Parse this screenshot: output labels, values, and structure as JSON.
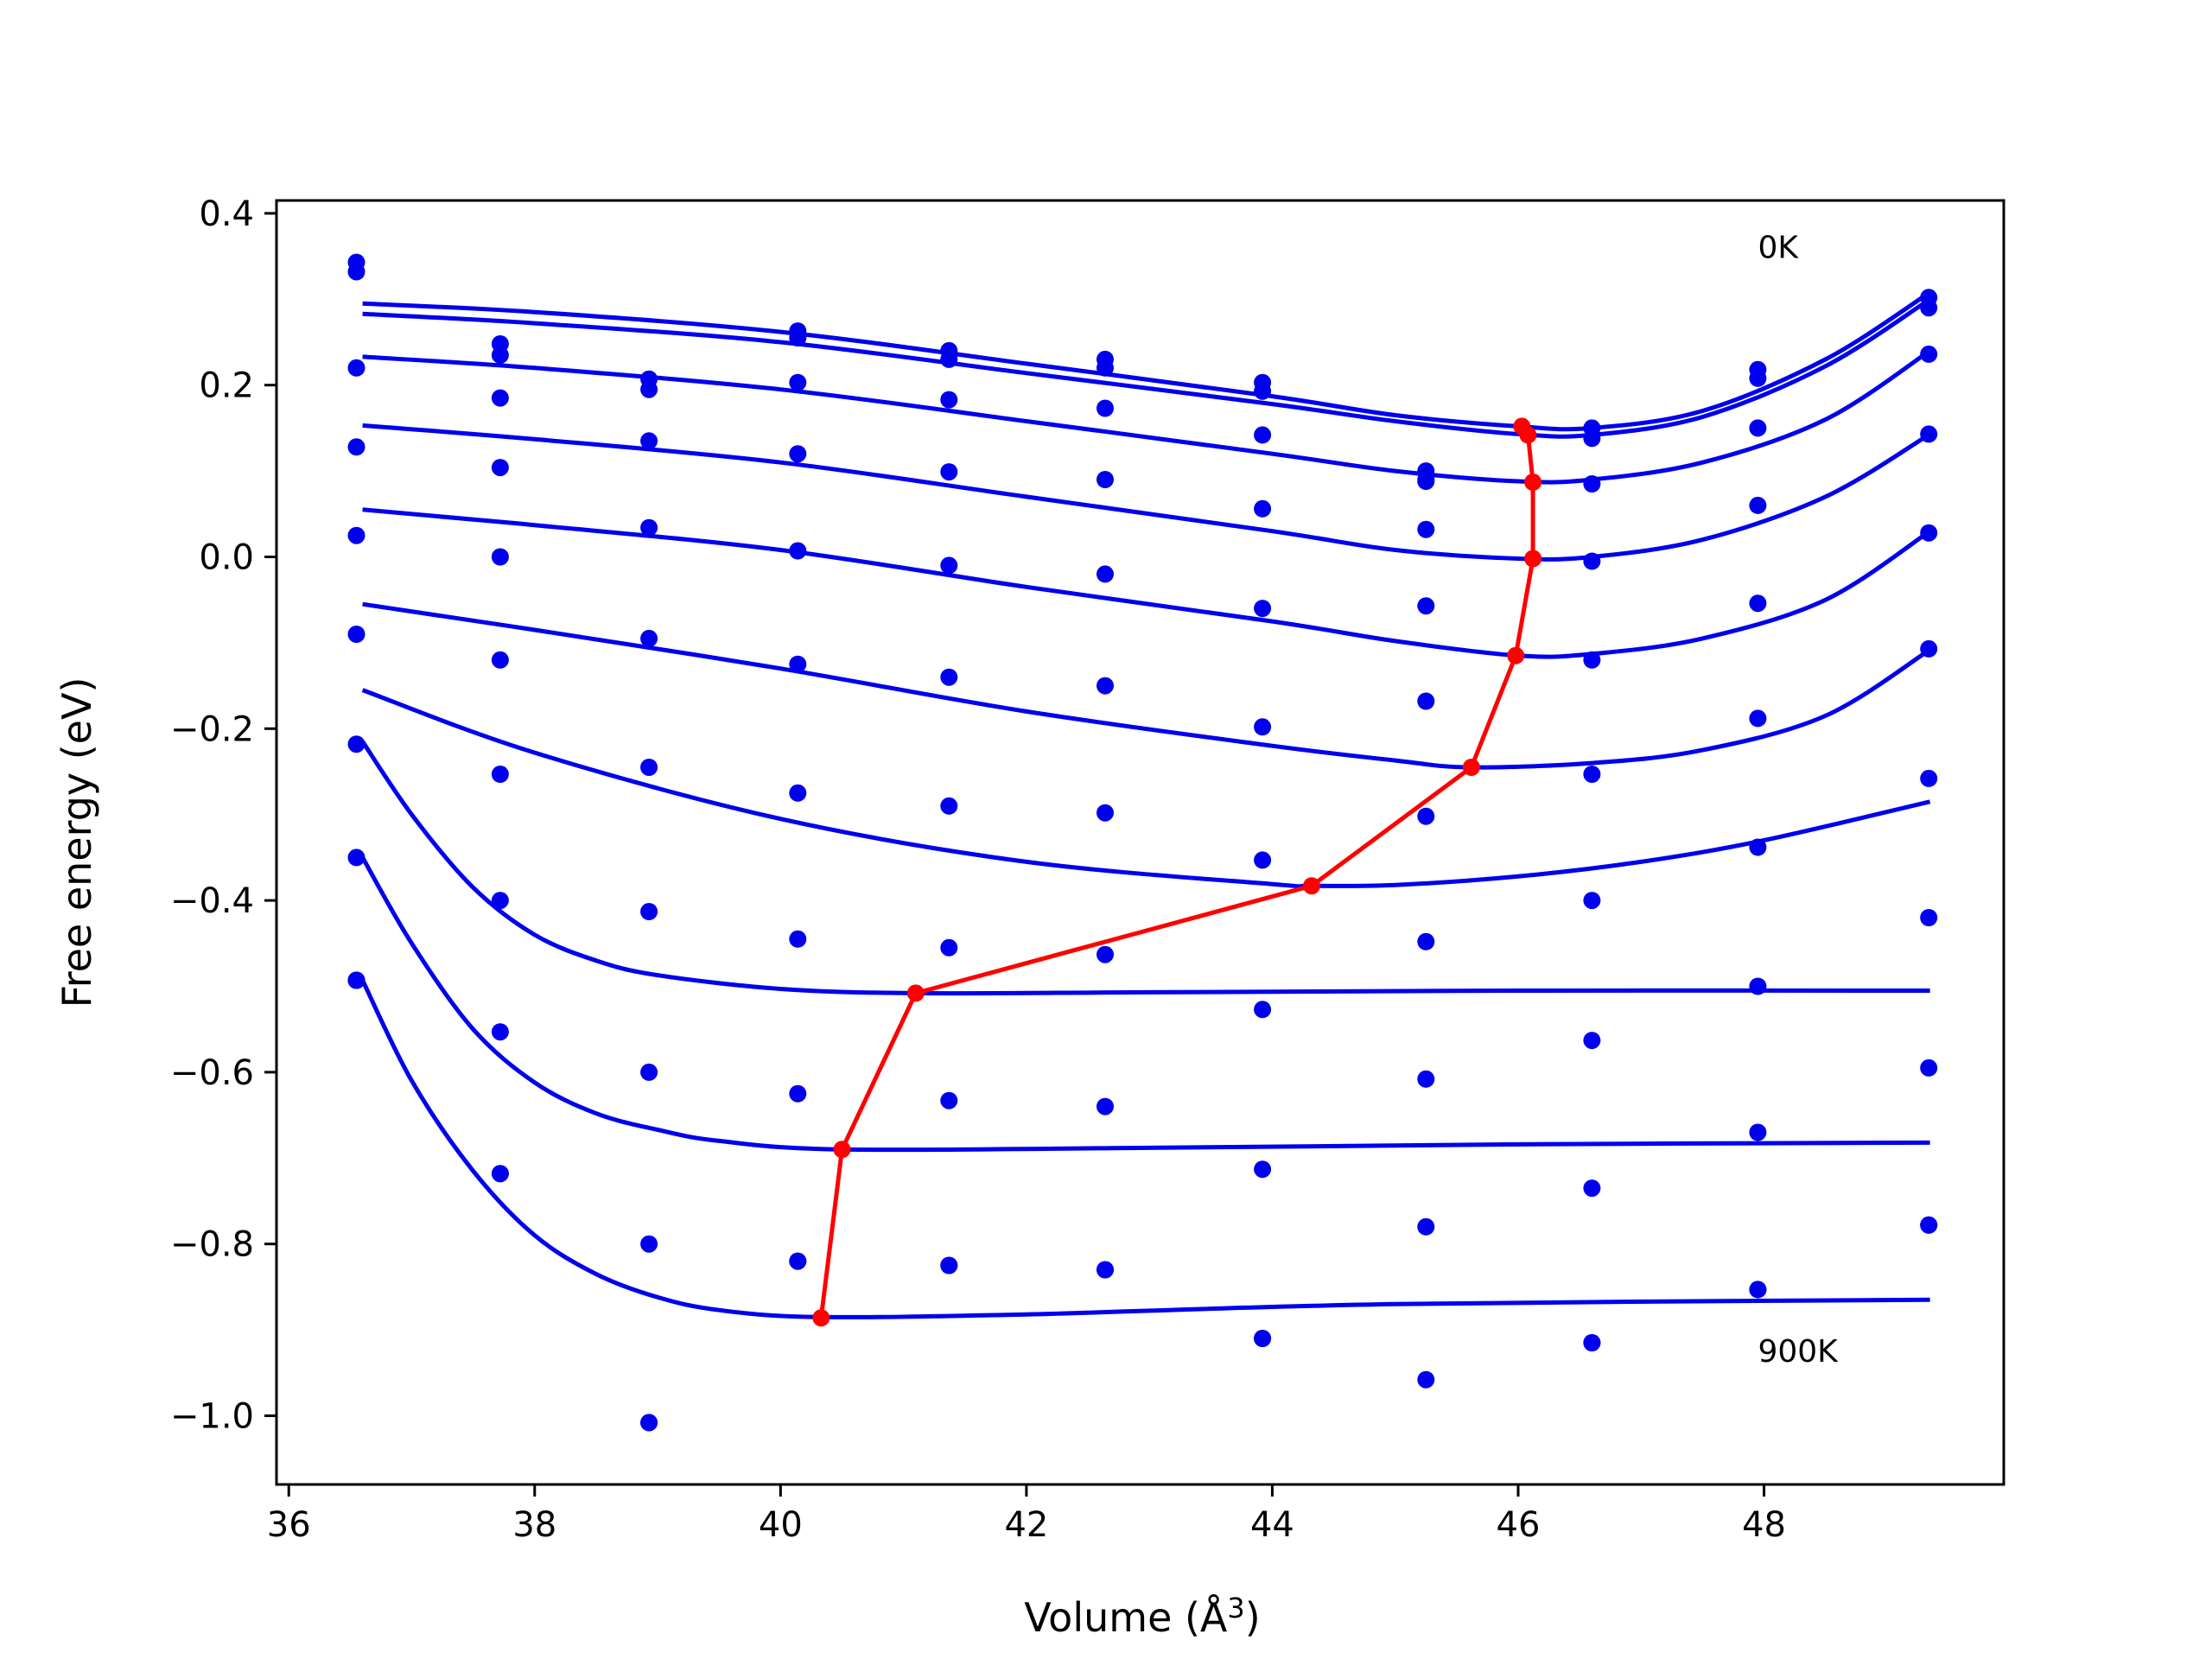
{
  "chart_data": {
    "type": "line",
    "xlabel": "Volume (Å",
    "xlabel_superscript": "3",
    "xlabel_close": ")",
    "ylabel": "Free energy (eV)",
    "xlim": [
      35.9,
      49.95
    ],
    "ylim": [
      -1.08,
      0.415
    ],
    "xticks": [
      36,
      38,
      40,
      42,
      44,
      46,
      48
    ],
    "yticks": [
      0.4,
      0.2,
      0.0,
      -0.2,
      -0.4,
      -0.6,
      -0.8,
      -1.0
    ],
    "ytick_labels": [
      "0.4",
      "0.2",
      "0.0",
      "−0.2",
      "−0.4",
      "−0.6",
      "−0.8",
      "−1.0"
    ],
    "grid": false,
    "annotations": [
      {
        "text": "0K",
        "x": 47.95,
        "y": 0.36
      },
      {
        "text": "900K",
        "x": 47.95,
        "y": -0.925
      }
    ],
    "colors": {
      "fit_curves": "#0000ee",
      "scatter": "#0000ee",
      "minimum_path": "#ff0000"
    },
    "volumes": [
      36.55,
      37.72,
      38.93,
      40.14,
      41.37,
      42.64,
      43.92,
      45.25,
      46.6,
      47.95,
      49.34
    ],
    "series": [
      {
        "y": [
          0.343,
          0.248,
          0.207,
          0.263,
          0.24,
          0.23,
          0.203,
          0.1,
          0.15,
          0.218,
          0.302
        ]
      },
      {
        "y": [
          0.332,
          0.235,
          0.195,
          0.255,
          0.23,
          0.22,
          0.193,
          0.09,
          0.138,
          0.208,
          0.29
        ]
      },
      {
        "y": [
          0.22,
          0.185,
          0.135,
          0.203,
          0.183,
          0.173,
          0.142,
          0.088,
          0.085,
          0.15,
          0.236
        ]
      },
      {
        "y": [
          0.128,
          0.104,
          0.034,
          0.12,
          0.099,
          0.09,
          0.056,
          0.032,
          -0.005,
          0.06,
          0.143
        ]
      },
      {
        "y": [
          0.025,
          0.0,
          -0.095,
          0.007,
          -0.01,
          -0.02,
          -0.06,
          -0.057,
          -0.12,
          -0.054,
          0.028
        ]
      },
      {
        "y": [
          -0.09,
          -0.12,
          -0.245,
          -0.125,
          -0.14,
          -0.15,
          -0.198,
          -0.168,
          -0.253,
          -0.188,
          -0.107
        ]
      },
      {
        "y": [
          -0.218,
          -0.253,
          -0.413,
          -0.275,
          -0.29,
          -0.298,
          -0.353,
          -0.302,
          -0.4,
          -0.338,
          -0.258
        ]
      },
      {
        "y": [
          -0.35,
          -0.4,
          -0.6,
          -0.445,
          -0.455,
          -0.463,
          -0.527,
          -0.448,
          -0.563,
          -0.5,
          -0.42
        ]
      },
      {
        "y": [
          -0.493,
          -0.553,
          -0.8,
          -0.625,
          -0.633,
          -0.64,
          -0.713,
          -0.608,
          -0.735,
          -0.67,
          -0.595
        ]
      },
      {
        "y": [
          -0.493,
          -0.718,
          -1.008,
          -0.82,
          -0.825,
          -0.83,
          -0.91,
          -0.78,
          -0.915,
          -0.853,
          -0.778
        ]
      },
      {
        "y": [
          -0.493,
          -0.718,
          -1.008,
          -0.82,
          -0.825,
          -0.83,
          -0.91,
          -0.958,
          -0.915,
          -0.853,
          -0.778
        ]
      }
    ],
    "fit_curves": [
      {
        "x": [
          36.6,
          38,
          40,
          42,
          44,
          45,
          46,
          46.6,
          47.5,
          48.5,
          49.35
        ],
        "y": [
          0.295,
          0.285,
          0.262,
          0.225,
          0.187,
          0.165,
          0.152,
          0.15,
          0.17,
          0.23,
          0.308
        ]
      },
      {
        "x": [
          36.6,
          38,
          40,
          42,
          44,
          45,
          46,
          46.6,
          47.5,
          48.5,
          49.35
        ],
        "y": [
          0.283,
          0.272,
          0.25,
          0.214,
          0.178,
          0.158,
          0.143,
          0.142,
          0.163,
          0.222,
          0.3
        ]
      },
      {
        "x": [
          36.6,
          38,
          40,
          42,
          44,
          45,
          46,
          46.6,
          47.5,
          48.5,
          49.35
        ],
        "y": [
          0.233,
          0.22,
          0.195,
          0.158,
          0.12,
          0.1,
          0.088,
          0.09,
          0.11,
          0.16,
          0.24
        ]
      },
      {
        "x": [
          36.6,
          38,
          40,
          42,
          44,
          45,
          46,
          46.6,
          47.5,
          48.5,
          49.35
        ],
        "y": [
          0.153,
          0.137,
          0.11,
          0.07,
          0.03,
          0.008,
          -0.002,
          0.0,
          0.02,
          0.07,
          0.143
        ]
      },
      {
        "x": [
          36.6,
          38,
          40,
          42,
          44,
          45,
          46,
          46.6,
          47.5,
          48.5,
          49.35
        ],
        "y": [
          0.055,
          0.037,
          0.008,
          -0.035,
          -0.075,
          -0.098,
          -0.115,
          -0.113,
          -0.095,
          -0.05,
          0.03
        ]
      },
      {
        "x": [
          36.6,
          38,
          40,
          42,
          44,
          45,
          45.6,
          46.6,
          47.5,
          48.5,
          49.35
        ],
        "y": [
          -0.055,
          -0.085,
          -0.13,
          -0.18,
          -0.22,
          -0.237,
          -0.245,
          -0.24,
          -0.225,
          -0.185,
          -0.108
        ]
      },
      {
        "x": [
          36.6,
          38,
          40,
          42,
          44,
          44.3,
          45,
          46,
          47,
          48,
          49.35
        ],
        "y": [
          -0.155,
          -0.228,
          -0.305,
          -0.355,
          -0.381,
          -0.383,
          -0.382,
          -0.372,
          -0.355,
          -0.33,
          -0.285
        ]
      },
      {
        "x": [
          36.6,
          37,
          37.5,
          38,
          38.5,
          39,
          40,
          41.1,
          43,
          46,
          49.35
        ],
        "y": [
          -0.215,
          -0.3,
          -0.385,
          -0.44,
          -0.47,
          -0.487,
          -0.503,
          -0.508,
          -0.507,
          -0.505,
          -0.505
        ]
      },
      {
        "x": [
          36.6,
          37,
          37.5,
          38,
          38.5,
          39,
          39.5,
          40.5,
          43,
          46,
          49.35
        ],
        "y": [
          -0.35,
          -0.45,
          -0.55,
          -0.612,
          -0.648,
          -0.667,
          -0.68,
          -0.69,
          -0.688,
          -0.684,
          -0.682
        ]
      },
      {
        "x": [
          36.6,
          37,
          37.5,
          38,
          38.5,
          39,
          39.5,
          40.3,
          42,
          45,
          49.35
        ],
        "y": [
          -0.493,
          -0.61,
          -0.715,
          -0.79,
          -0.835,
          -0.862,
          -0.877,
          -0.885,
          -0.882,
          -0.87,
          -0.865
        ]
      }
    ],
    "minimum_path": {
      "x": [
        46.03,
        46.08,
        46.12,
        46.12,
        45.98,
        45.62,
        44.32,
        41.1,
        40.5,
        40.33
      ],
      "y": [
        0.152,
        0.142,
        0.087,
        -0.002,
        -0.115,
        -0.245,
        -0.383,
        -0.508,
        -0.69,
        -0.886
      ]
    }
  }
}
